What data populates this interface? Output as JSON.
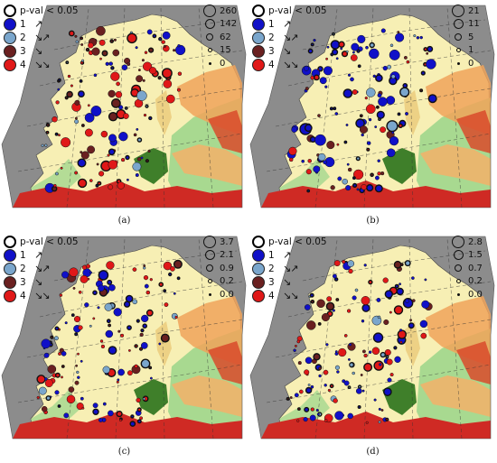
{
  "legend": {
    "significance_label": "p-val < 0.05",
    "classes": [
      {
        "number": "1",
        "arrows": "↗",
        "color": "#1010c8"
      },
      {
        "number": "2",
        "arrows": "↘↗",
        "color": "#7aa6cc"
      },
      {
        "number": "3",
        "arrows": "↘",
        "color": "#6a2020"
      },
      {
        "number": "4",
        "arrows": "↘↘",
        "color": "#e01818"
      }
    ]
  },
  "panels": [
    {
      "id": "a",
      "caption": "(a)",
      "size_values": [
        "260",
        "142",
        "62",
        "15",
        "0"
      ]
    },
    {
      "id": "b",
      "caption": "(b)",
      "size_values": [
        "21",
        "11",
        "5",
        "1",
        "0"
      ]
    },
    {
      "id": "c",
      "caption": "(c)",
      "size_values": [
        "3.7",
        "2.1",
        "0.9",
        "0.2",
        "0.0"
      ]
    },
    {
      "id": "d",
      "caption": "(d)",
      "size_values": [
        "2.8",
        "1.5",
        "0.7",
        "0.2",
        "0.0"
      ]
    }
  ]
}
